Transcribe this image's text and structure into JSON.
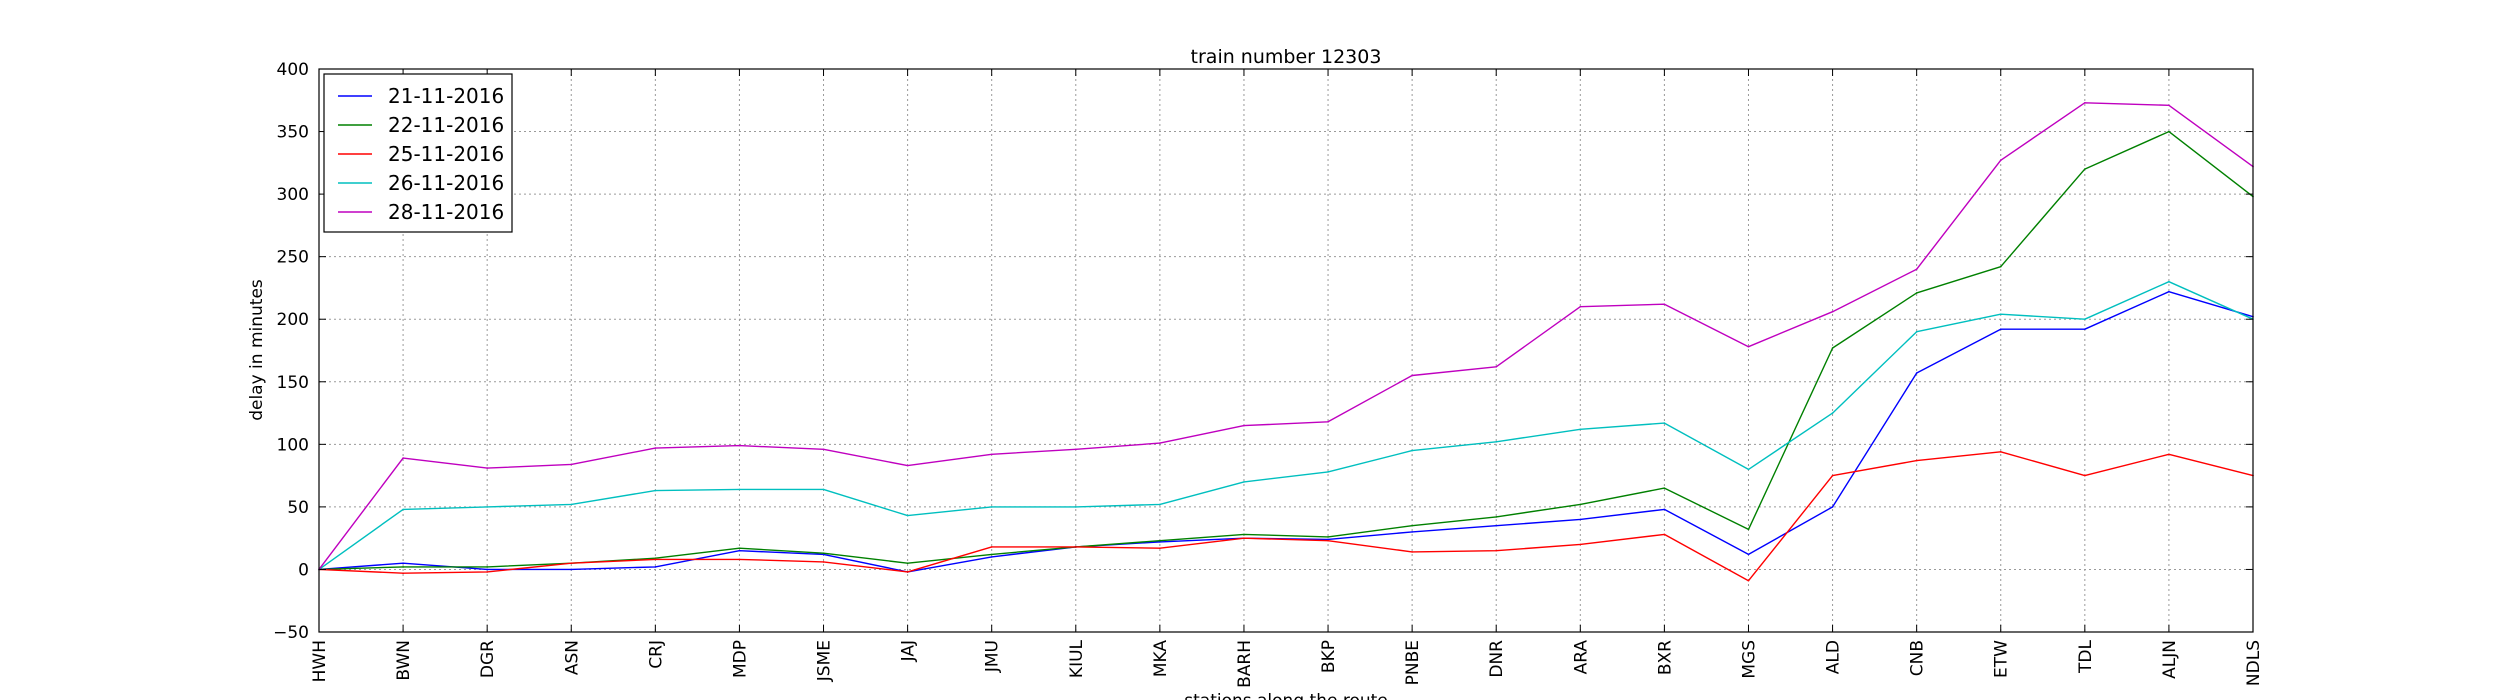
{
  "chart_data": {
    "type": "line",
    "title": "train number 12303",
    "xlabel": "stations along the route",
    "ylabel": "delay in minutes",
    "ylim": [
      -50,
      400
    ],
    "yticks": [
      -50,
      0,
      50,
      100,
      150,
      200,
      250,
      300,
      350,
      400
    ],
    "grid": true,
    "legend_position": "top-left",
    "categories": [
      "HWH",
      "BWN",
      "DGR",
      "ASN",
      "CRJ",
      "MDP",
      "JSME",
      "JAJ",
      "JMU",
      "KIUL",
      "MKA",
      "BARH",
      "BKP",
      "PNBE",
      "DNR",
      "ARA",
      "BXR",
      "MGS",
      "ALD",
      "CNB",
      "ETW",
      "TDL",
      "ALJN",
      "NDLS"
    ],
    "series": [
      {
        "name": "21-11-2016",
        "color": "#0000ff",
        "values": [
          0,
          5,
          0,
          0,
          2,
          15,
          12,
          -2,
          10,
          18,
          22,
          25,
          24,
          30,
          35,
          40,
          48,
          12,
          50,
          157,
          192,
          192,
          222,
          202
        ]
      },
      {
        "name": "22-11-2016",
        "color": "#008000",
        "values": [
          0,
          2,
          2,
          5,
          9,
          17,
          13,
          5,
          12,
          18,
          23,
          28,
          26,
          35,
          42,
          52,
          65,
          32,
          177,
          221,
          242,
          320,
          350,
          298
        ]
      },
      {
        "name": "25-11-2016",
        "color": "#ff0000",
        "values": [
          0,
          -3,
          -2,
          5,
          8,
          8,
          6,
          -2,
          18,
          18,
          17,
          25,
          23,
          14,
          15,
          20,
          28,
          -9,
          75,
          87,
          94,
          75,
          92,
          75
        ]
      },
      {
        "name": "26-11-2016",
        "color": "#00bfbf",
        "values": [
          0,
          48,
          50,
          52,
          63,
          64,
          64,
          43,
          50,
          50,
          52,
          70,
          78,
          95,
          102,
          112,
          117,
          80,
          125,
          190,
          204,
          200,
          230,
          200
        ]
      },
      {
        "name": "28-11-2016",
        "color": "#bf00bf",
        "values": [
          0,
          89,
          81,
          84,
          97,
          99,
          96,
          83,
          92,
          96,
          101,
          115,
          118,
          155,
          162,
          210,
          212,
          178,
          206,
          240,
          327,
          373,
          371,
          322
        ]
      }
    ]
  }
}
